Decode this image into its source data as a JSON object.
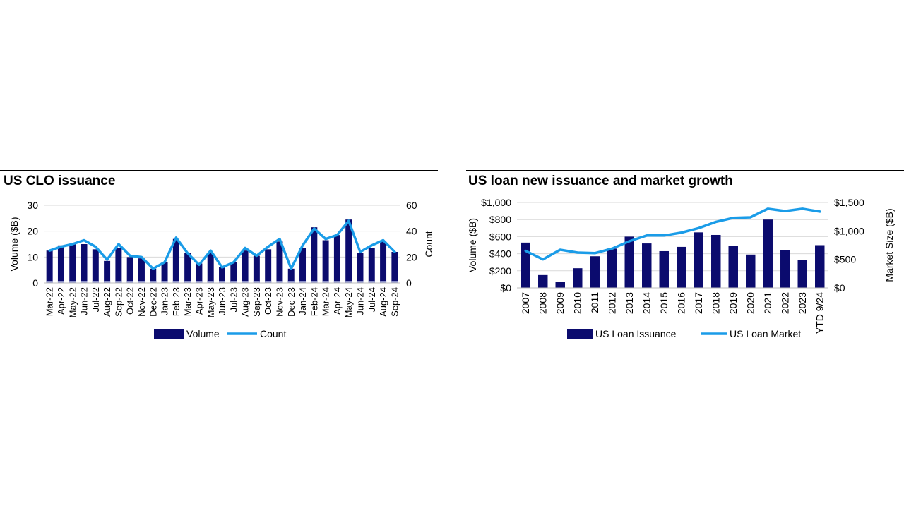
{
  "panels": {
    "left": {
      "title": "US CLO issuance"
    },
    "right": {
      "title": "US loan new issuance and market growth"
    }
  },
  "colors": {
    "bar": "#0b0b6e",
    "line": "#1a9ce8",
    "grid": "#d9d9d9",
    "axis": "#bfbfbf",
    "bar_base": "#8a8fc8"
  },
  "chart_data": [
    {
      "type": "bar",
      "title": "US CLO issuance",
      "categories": [
        "Mar-22",
        "Apr-22",
        "May-22",
        "Jun-22",
        "Jul-22",
        "Aug-22",
        "Sep-22",
        "Oct-22",
        "Nov-22",
        "Dec-22",
        "Jan-23",
        "Feb-23",
        "Mar-23",
        "Apr-23",
        "May-23",
        "Jun-23",
        "Jul-23",
        "Aug-23",
        "Sep-23",
        "Oct-23",
        "Nov-23",
        "Dec-23",
        "Jan-24",
        "Feb-24",
        "Mar-24",
        "Apr-24",
        "May-24",
        "Jun-24",
        "Jul-24",
        "Aug-24",
        "Sep-24"
      ],
      "series": [
        {
          "name": "Volume",
          "type": "bar",
          "axis": "left",
          "values": [
            12.5,
            14.5,
            15,
            15,
            13,
            8.5,
            13.5,
            10,
            9.5,
            5.5,
            8,
            17,
            11.5,
            7.5,
            11.5,
            6,
            8,
            12.5,
            10.5,
            13,
            16,
            5.5,
            13.5,
            21.5,
            16.5,
            18.5,
            24.5,
            11.5,
            13.5,
            16,
            12
          ]
        },
        {
          "name": "Count",
          "type": "line",
          "axis": "right",
          "values": [
            25,
            28,
            30,
            33,
            28,
            18,
            30,
            21,
            20,
            11,
            16,
            35,
            23,
            14,
            25,
            12,
            16,
            27,
            21,
            28,
            34,
            11,
            29,
            42,
            34,
            37,
            48,
            24,
            29,
            33,
            24
          ]
        }
      ],
      "ylabel": "Volume ($B)",
      "y2label": "Count",
      "ylim": [
        0,
        30
      ],
      "yticks": [
        0,
        10,
        20,
        30
      ],
      "y2lim": [
        0,
        60
      ],
      "y2ticks": [
        0,
        20,
        40,
        60
      ],
      "grid": true,
      "legend": "bottom"
    },
    {
      "type": "bar",
      "title": "US loan new issuance and market growth",
      "categories": [
        "2007",
        "2008",
        "2009",
        "2010",
        "2011",
        "2012",
        "2013",
        "2014",
        "2015",
        "2016",
        "2017",
        "2018",
        "2019",
        "2020",
        "2021",
        "2022",
        "2023",
        "YTD 9/24"
      ],
      "series": [
        {
          "name": "US Loan Issuance",
          "type": "bar",
          "axis": "left",
          "values": [
            530,
            150,
            70,
            230,
            370,
            460,
            600,
            520,
            430,
            480,
            650,
            620,
            490,
            390,
            800,
            440,
            330,
            500
          ]
        },
        {
          "name": "US Loan Market",
          "type": "line",
          "axis": "right",
          "values": [
            650,
            500,
            670,
            620,
            610,
            690,
            820,
            920,
            920,
            970,
            1050,
            1160,
            1230,
            1240,
            1390,
            1350,
            1390,
            1340
          ]
        }
      ],
      "ylabel": "Volume ($B)",
      "y2label": "Market Size ($B)",
      "ylim": [
        0,
        1000
      ],
      "yticks": [
        0,
        200,
        400,
        600,
        800,
        1000
      ],
      "ytick_labels": [
        "$0",
        "$200",
        "$400",
        "$600",
        "$800",
        "$1,000"
      ],
      "y2lim": [
        0,
        1500
      ],
      "y2ticks": [
        0,
        500,
        1000,
        1500
      ],
      "y2tick_labels": [
        "$0",
        "$500",
        "$1,000",
        "$1,500"
      ],
      "grid": true,
      "legend": "bottom"
    }
  ]
}
